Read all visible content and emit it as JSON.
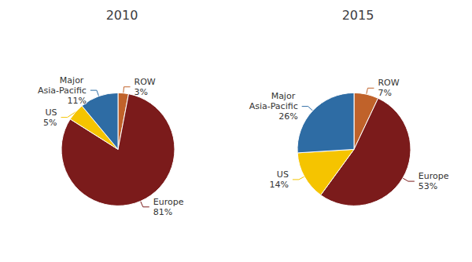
{
  "chart_data": [
    {
      "type": "pie",
      "title": "2010",
      "categories": [
        "ROW",
        "Europe",
        "US",
        "Major Asia-Pacific"
      ],
      "values": [
        3,
        81,
        5,
        11
      ],
      "value_labels": [
        "3%",
        "81%",
        "5%",
        "11%"
      ],
      "colors": [
        "#C0622A",
        "#7B1B1B",
        "#F5C400",
        "#2E6CA4"
      ],
      "data_labels": true
    },
    {
      "type": "pie",
      "title": "2015",
      "categories": [
        "ROW",
        "Europe",
        "US",
        "Major Asia-Pacific"
      ],
      "values": [
        7,
        53,
        14,
        26
      ],
      "value_labels": [
        "7%",
        "53%",
        "14%",
        "26%"
      ],
      "colors": [
        "#C0622A",
        "#7B1B1B",
        "#F5C400",
        "#2E6CA4"
      ],
      "data_labels": true
    }
  ]
}
